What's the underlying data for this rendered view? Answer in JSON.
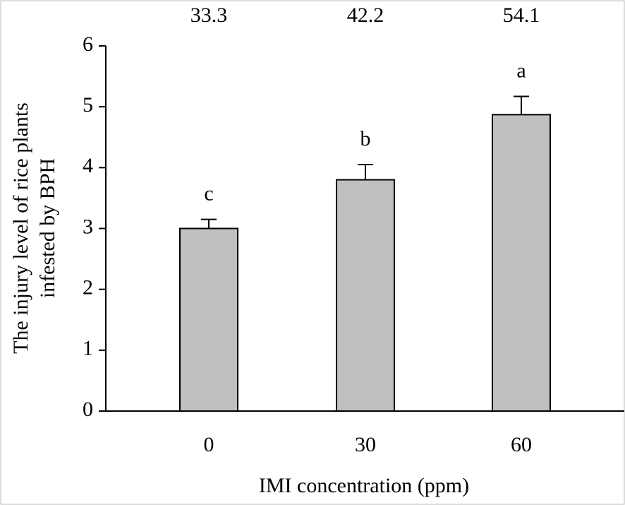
{
  "chart_data": {
    "type": "bar",
    "xlabel": "IMI concentration (ppm)",
    "ylabel": [
      "The injury level of rice plants",
      "infested by BPH"
    ],
    "categories": [
      "0",
      "30",
      "60"
    ],
    "values": [
      3.0,
      3.8,
      4.87
    ],
    "errors": [
      0.15,
      0.25,
      0.3
    ],
    "significance_letters": [
      "c",
      "b",
      "a"
    ],
    "top_labels": [
      33.3,
      42.2,
      54.1
    ],
    "color": "#c0c0c0",
    "ylim": [
      0,
      6
    ],
    "yticks": [
      0,
      1,
      2,
      3,
      4,
      5,
      6
    ],
    "grid": false
  }
}
